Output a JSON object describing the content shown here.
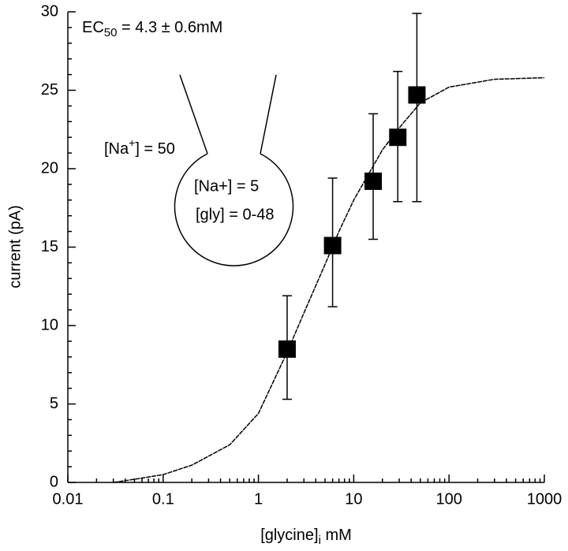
{
  "chart_data": {
    "type": "scatter",
    "annotations": [
      {
        "parts": [
          "EC",
          "50",
          " = 4.3 ± 0.6mM"
        ]
      },
      {
        "parts": [
          "[Na",
          "+",
          "] = 50"
        ]
      },
      {
        "parts": [
          "[Na+] = 5"
        ]
      },
      {
        "parts": [
          "[gly] = 0-48"
        ]
      }
    ],
    "xlabel": {
      "parts": [
        "[glycine]",
        "i",
        " mM"
      ]
    },
    "ylabel": "current (pA)",
    "xlog": true,
    "xlim": [
      0.01,
      1000
    ],
    "ylim": [
      0,
      30
    ],
    "xticks": [
      0.01,
      0.1,
      1,
      10,
      100,
      1000
    ],
    "yticks": [
      0,
      5,
      10,
      15,
      20,
      25,
      30
    ],
    "xminor_ticks": [
      0.02,
      0.03,
      0.04,
      0.05,
      0.06,
      0.07,
      0.08,
      0.09,
      0.2,
      0.3,
      0.4,
      0.5,
      0.6,
      0.7,
      0.8,
      0.9,
      2,
      3,
      4,
      5,
      6,
      7,
      8,
      9,
      20,
      30,
      40,
      50,
      60,
      70,
      80,
      90,
      200,
      300,
      400,
      500,
      600,
      700,
      800,
      900
    ],
    "yminor_ticks": [
      1,
      2,
      3,
      4,
      6,
      7,
      8,
      9,
      11,
      12,
      13,
      14,
      16,
      17,
      18,
      19,
      21,
      22,
      23,
      24,
      26,
      27,
      28,
      29
    ],
    "points": {
      "color": "#000000",
      "x": [
        2,
        6,
        16,
        29,
        46
      ],
      "values": [
        8.5,
        15.1,
        19.2,
        22.0,
        24.7
      ],
      "yerr_low": [
        3.2,
        3.9,
        3.7,
        4.1,
        6.8
      ],
      "yerr_high": [
        3.4,
        4.3,
        4.3,
        4.2,
        5.2
      ]
    },
    "fit": {
      "color": "#000000",
      "x": [
        0.03,
        0.05,
        0.1,
        0.2,
        0.5,
        1,
        2,
        3,
        5,
        7,
        10,
        20,
        30,
        50,
        100,
        300,
        1000
      ],
      "values": [
        0,
        0.2,
        0.5,
        1.1,
        2.4,
        4.4,
        8.3,
        10.8,
        13.9,
        16.0,
        18.0,
        21.2,
        22.6,
        24.2,
        25.2,
        25.7,
        25.8
      ]
    }
  }
}
